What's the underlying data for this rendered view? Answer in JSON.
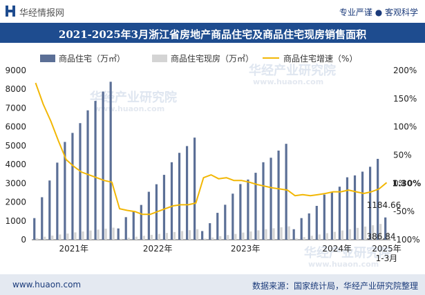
{
  "header": {
    "site_name": "华经情报网",
    "tagline": "专业严谨 ● 客观科学",
    "title": "2021-2025年3月浙江省房地产商品住宅及商品住宅现房销售面积"
  },
  "footer": {
    "url": "www.huaon.com",
    "source": "数据来源：国家统计局，华经产业研究院整理"
  },
  "watermark": {
    "text": "华经产业研究院",
    "url": "www.huaon.com"
  },
  "colors": {
    "bar_main": "#5b6f96",
    "bar_now": "#d4d4d4",
    "line": "#f2b705",
    "band": "#1e4c8f"
  },
  "chart_data": {
    "type": "bar",
    "legend": [
      "商品住宅（万㎡）",
      "商品住宅现房（万㎡）",
      "商品住宅增速（%）"
    ],
    "x_labels": [
      "2021年",
      "2022年",
      "2023年",
      "2024年",
      "2025年\n1-3月"
    ],
    "ylim_left": [
      0,
      9000
    ],
    "yticks_left": [
      "0",
      "1000",
      "2000",
      "3000",
      "4000",
      "5000",
      "6000",
      "7000",
      "8000",
      "9000"
    ],
    "ylim_right": [
      -100,
      200
    ],
    "yticks_right": [
      "-100%",
      "-50%",
      "0%",
      "50%",
      "100%",
      "150%",
      "200%"
    ],
    "series": [
      {
        "name": "商品住宅（万㎡）",
        "values": [
          1150,
          2260,
          3150,
          4100,
          5200,
          5680,
          6200,
          6880,
          7380,
          7880,
          8400,
          600,
          1200,
          1500,
          1850,
          2550,
          2950,
          3450,
          4120,
          4620,
          4980,
          5430,
          460,
          880,
          1430,
          1860,
          2450,
          2960,
          3200,
          3560,
          4120,
          4360,
          4740,
          5100,
          560,
          1150,
          1400,
          1800,
          2400,
          2550,
          2820,
          3320,
          3420,
          3620,
          3880,
          4300,
          1184.66
        ]
      },
      {
        "name": "商品住宅现房（万㎡）",
        "values": [
          80,
          160,
          220,
          280,
          330,
          390,
          440,
          490,
          540,
          590,
          640,
          50,
          110,
          160,
          210,
          260,
          310,
          360,
          410,
          460,
          510,
          560,
          60,
          120,
          190,
          250,
          310,
          380,
          440,
          500,
          560,
          610,
          660,
          710,
          70,
          140,
          210,
          280,
          350,
          420,
          490,
          560,
          630,
          700,
          770,
          840,
          386.84
        ]
      },
      {
        "name": "商品住宅增速（%）",
        "values": [
          178,
          140,
          110,
          75,
          42,
          30,
          20,
          15,
          10,
          5,
          2,
          -45,
          -48,
          -50,
          -55,
          -55,
          -50,
          -45,
          -40,
          -38,
          -38,
          -35,
          10,
          15,
          8,
          10,
          5,
          5,
          2,
          -2,
          -5,
          -8,
          -10,
          -12,
          -22,
          -20,
          -22,
          -20,
          -18,
          -15,
          -15,
          -12,
          -15,
          -18,
          -15,
          -10,
          1.3
        ]
      }
    ],
    "annotations": {
      "bar_label": "1184.66",
      "now_label": "386.84",
      "line_label": "1.30%"
    }
  }
}
